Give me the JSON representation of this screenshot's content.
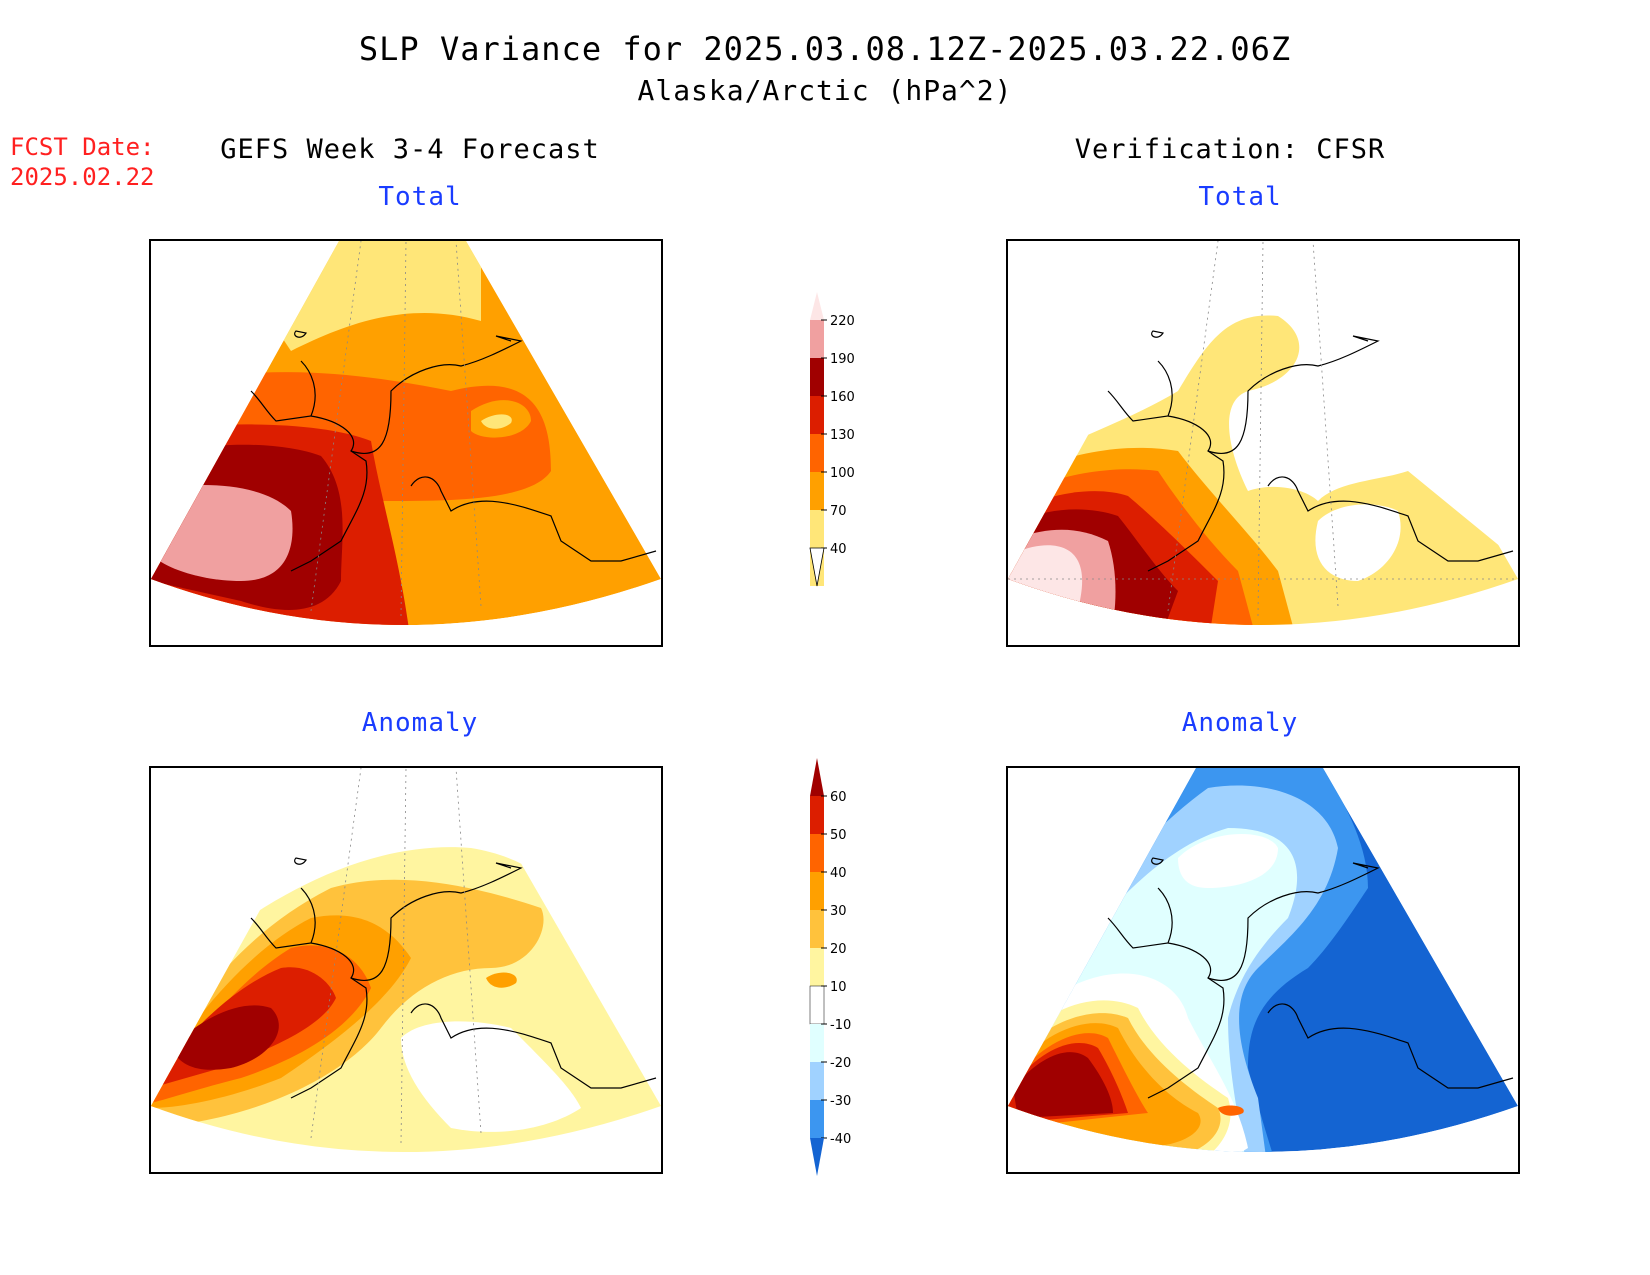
{
  "header": {
    "title": "SLP Variance for 2025.03.08.12Z-2025.03.22.06Z",
    "subtitle": "Alaska/Arctic (hPa^2)"
  },
  "forecast_date": {
    "line1": "FCST Date:",
    "line2": "2025.02.22"
  },
  "columns": {
    "left": "GEFS Week 3-4 Forecast",
    "right": "Verification: CFSR"
  },
  "panels": {
    "forecast_total": {
      "title": "Total"
    },
    "verification_total": {
      "title": "Total"
    },
    "forecast_anomaly": {
      "title": "Anomaly"
    },
    "verification_anomaly": {
      "title": "Anomaly"
    }
  },
  "colorbars": {
    "total": {
      "labels": [
        "220",
        "190",
        "160",
        "130",
        "100",
        "70",
        "40"
      ],
      "colors": [
        "#fde6e6",
        "#f0a0a0",
        "#a00000",
        "#dc1e00",
        "#ff6400",
        "#ffa000",
        "#ffe678"
      ]
    },
    "anomaly": {
      "labels": [
        "60",
        "50",
        "40",
        "30",
        "20",
        "10",
        "-10",
        "-20",
        "-30",
        "-40"
      ],
      "colors": [
        "#a00000",
        "#dc1e00",
        "#ff6400",
        "#ffa000",
        "#ffc23c",
        "#fff5a0",
        "#ffffff",
        "#e0ffff",
        "#a0d2ff",
        "#3c96f0",
        "#1464d2"
      ]
    }
  },
  "map_colors": {
    "pink_light": "#fde6e6",
    "pink": "#f0a0a0",
    "dark_red": "#a00000",
    "red": "#dc1e00",
    "orange_red": "#ff6400",
    "orange": "#ffa000",
    "yellow": "#ffe678",
    "light_orange": "#ffc23c",
    "pale_yellow": "#fff5a0",
    "pale_blue": "#e0ffff",
    "light_blue": "#a0d2ff",
    "mid_blue": "#3c96f0",
    "blue": "#1464d2",
    "coast": "#000000",
    "grid": "#888888"
  }
}
